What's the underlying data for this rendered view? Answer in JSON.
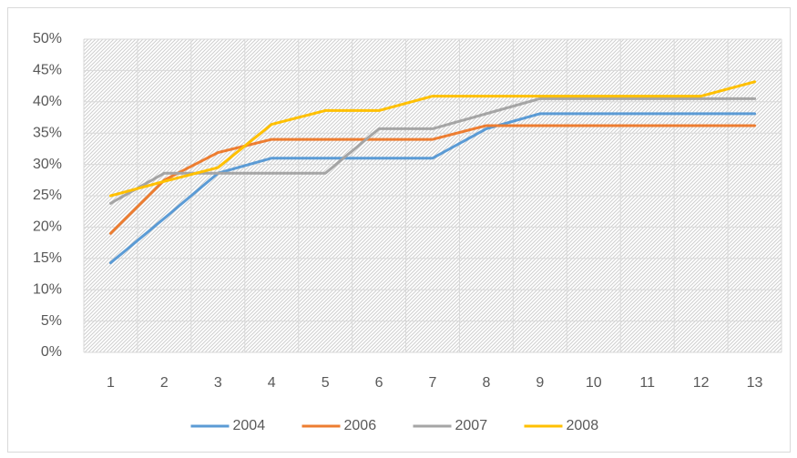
{
  "chart_data": {
    "type": "line",
    "categories": [
      "1",
      "2",
      "3",
      "4",
      "5",
      "6",
      "7",
      "8",
      "9",
      "10",
      "11",
      "12",
      "13"
    ],
    "series": [
      {
        "name": "2004",
        "color": "#5b9bd5",
        "values": [
          14.3,
          21.4,
          28.6,
          31.0,
          31.0,
          31.0,
          31.0,
          35.7,
          38.1,
          38.1,
          38.1,
          38.1,
          38.1
        ]
      },
      {
        "name": "2006",
        "color": "#ed7d31",
        "values": [
          19.0,
          27.5,
          31.9,
          34.0,
          34.0,
          34.0,
          34.0,
          36.2,
          36.2,
          36.2,
          36.2,
          36.2,
          36.2
        ]
      },
      {
        "name": "2007",
        "color": "#a5a5a5",
        "values": [
          23.8,
          28.6,
          28.6,
          28.6,
          28.6,
          35.7,
          35.7,
          38.1,
          40.5,
          40.5,
          40.5,
          40.5,
          40.5
        ]
      },
      {
        "name": "2008",
        "color": "#ffc000",
        "values": [
          25.0,
          27.3,
          29.5,
          36.4,
          38.6,
          38.6,
          40.9,
          40.9,
          40.9,
          40.9,
          40.9,
          40.9,
          43.2
        ]
      }
    ],
    "ylim": [
      0,
      50
    ],
    "yticks": [
      {
        "value": 0,
        "label": "0%"
      },
      {
        "value": 5,
        "label": "5%"
      },
      {
        "value": 10,
        "label": "10%"
      },
      {
        "value": 15,
        "label": "15%"
      },
      {
        "value": 20,
        "label": "20%"
      },
      {
        "value": 25,
        "label": "25%"
      },
      {
        "value": 30,
        "label": "30%"
      },
      {
        "value": 35,
        "label": "35%"
      },
      {
        "value": 40,
        "label": "40%"
      },
      {
        "value": 45,
        "label": "45%"
      },
      {
        "value": 50,
        "label": "50%"
      }
    ],
    "grid": true,
    "legend": "bottom"
  }
}
